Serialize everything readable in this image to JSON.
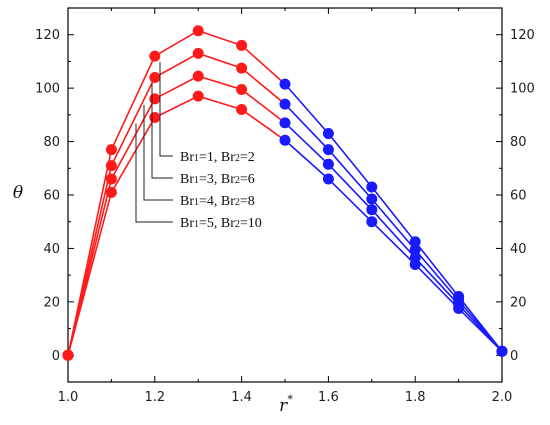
{
  "chart_data": {
    "type": "line",
    "xlabel": "r",
    "xlabel_superscript": "*",
    "ylabel": "θ",
    "xlim": [
      1.0,
      2.0
    ],
    "ylim": [
      -10,
      130
    ],
    "xticks": [
      "1.0",
      "1.2",
      "1.4",
      "1.6",
      "1.8",
      "2.0"
    ],
    "yticks": [
      "0",
      "20",
      "40",
      "60",
      "80",
      "100",
      "120"
    ],
    "grid": false,
    "x": [
      1.0,
      1.1,
      1.2,
      1.3,
      1.4,
      1.5,
      1.6,
      1.7,
      1.8,
      1.9,
      2.0
    ],
    "segment_colors": {
      "region1": "#ff1a1a",
      "region2": "#1a1aff"
    },
    "region_split_x": 1.5,
    "series": [
      {
        "label_parts": [
          "Br",
          "1",
          "=1, Br",
          "2",
          "=2"
        ],
        "values": [
          0,
          77,
          112,
          121.5,
          116,
          101.5,
          83,
          63,
          42.5,
          22,
          1.5
        ]
      },
      {
        "label_parts": [
          "Br",
          "1",
          "=3, Br",
          "2",
          "=6"
        ],
        "values": [
          0,
          71,
          104,
          113,
          107.5,
          94,
          77,
          58.5,
          39.5,
          20.5,
          1.5
        ]
      },
      {
        "label_parts": [
          "Br",
          "1",
          "=4, Br",
          "2",
          "=8"
        ],
        "values": [
          0,
          66,
          96,
          104.5,
          99.5,
          87,
          71.5,
          54.5,
          36.5,
          19,
          1.5
        ]
      },
      {
        "label_parts": [
          "Br",
          "1",
          "=5, Br",
          "2",
          "=10"
        ],
        "values": [
          0,
          61,
          89,
          97,
          92,
          80.5,
          66,
          50,
          34,
          17.5,
          1.5
        ]
      }
    ]
  }
}
